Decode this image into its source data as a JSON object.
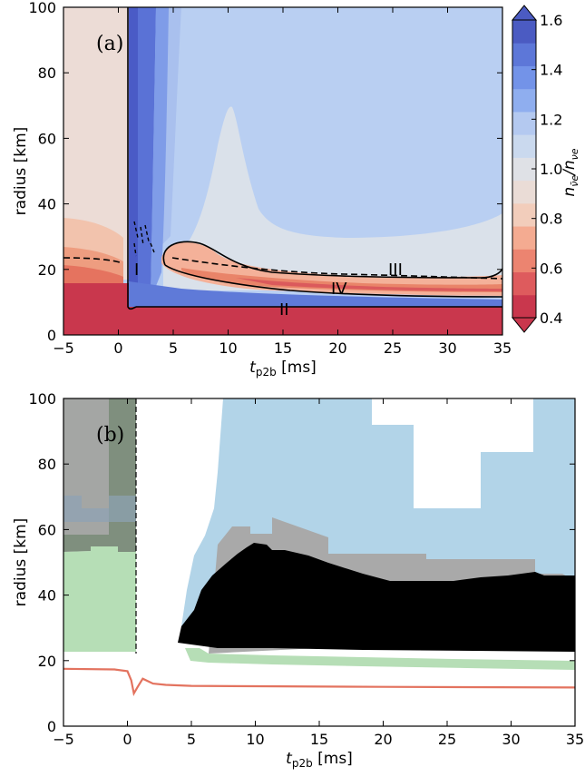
{
  "chart_data": [
    {
      "panel": "(a)",
      "type": "heatmap",
      "xlabel_main": "t",
      "xlabel_sub": "p2b",
      "xlabel_unit": "[ms]",
      "ylabel": "radius [km]",
      "xlim": [
        -5,
        35
      ],
      "ylim": [
        0,
        100
      ],
      "xticks": [
        -5,
        0,
        5,
        10,
        15,
        20,
        25,
        30,
        35
      ],
      "yticks": [
        0,
        20,
        40,
        60,
        80,
        100
      ],
      "colorbar": {
        "label_num": "n",
        "label_num_sub": "ν̄e",
        "label_den": "n",
        "label_den_sub": "νe",
        "ticks": [
          "0.4",
          "0.6",
          "0.8",
          "1.0",
          "1.2",
          "1.4",
          "1.6"
        ],
        "range": [
          0.4,
          1.6
        ],
        "colors": [
          "#c9374d",
          "#de5b5d",
          "#ec8470",
          "#f4ab91",
          "#f2cdbb",
          "#eadcd6",
          "#dfe1e6",
          "#cad9ee",
          "#b4c9f0",
          "#8faeef",
          "#7393e8",
          "#5d77d8",
          "#4b5bc2"
        ]
      },
      "region_labels": [
        "I",
        "II",
        "III",
        "IV"
      ],
      "legend": "none",
      "grid": false
    },
    {
      "panel": "(b)",
      "type": "area",
      "xlabel_main": "t",
      "xlabel_sub": "p2b",
      "xlabel_unit": "[ms]",
      "ylabel": "radius [km]",
      "xlim": [
        -5,
        35
      ],
      "ylim": [
        0,
        100
      ],
      "xticks": [
        -5,
        0,
        5,
        10,
        15,
        20,
        25,
        30,
        35
      ],
      "yticks": [
        0,
        20,
        40,
        60,
        80,
        100
      ],
      "colors": {
        "black_region": "#000000",
        "gray_region": "#a9a9a9",
        "blue_region": "#b2d4e8",
        "green_region": "#b6deb6",
        "graygreen_region": "#7f8f7e",
        "red_line": "#e3735f"
      },
      "red_line": {
        "x": [
          -5,
          -1,
          0,
          0.3,
          0.5,
          0.8,
          1.2,
          2,
          3,
          5,
          10,
          20,
          35
        ],
        "y": [
          17.5,
          17.3,
          16.8,
          14,
          10,
          12,
          14.5,
          13,
          12.6,
          12.3,
          12.2,
          12.0,
          11.8
        ]
      },
      "legend": "none",
      "grid": false
    }
  ]
}
